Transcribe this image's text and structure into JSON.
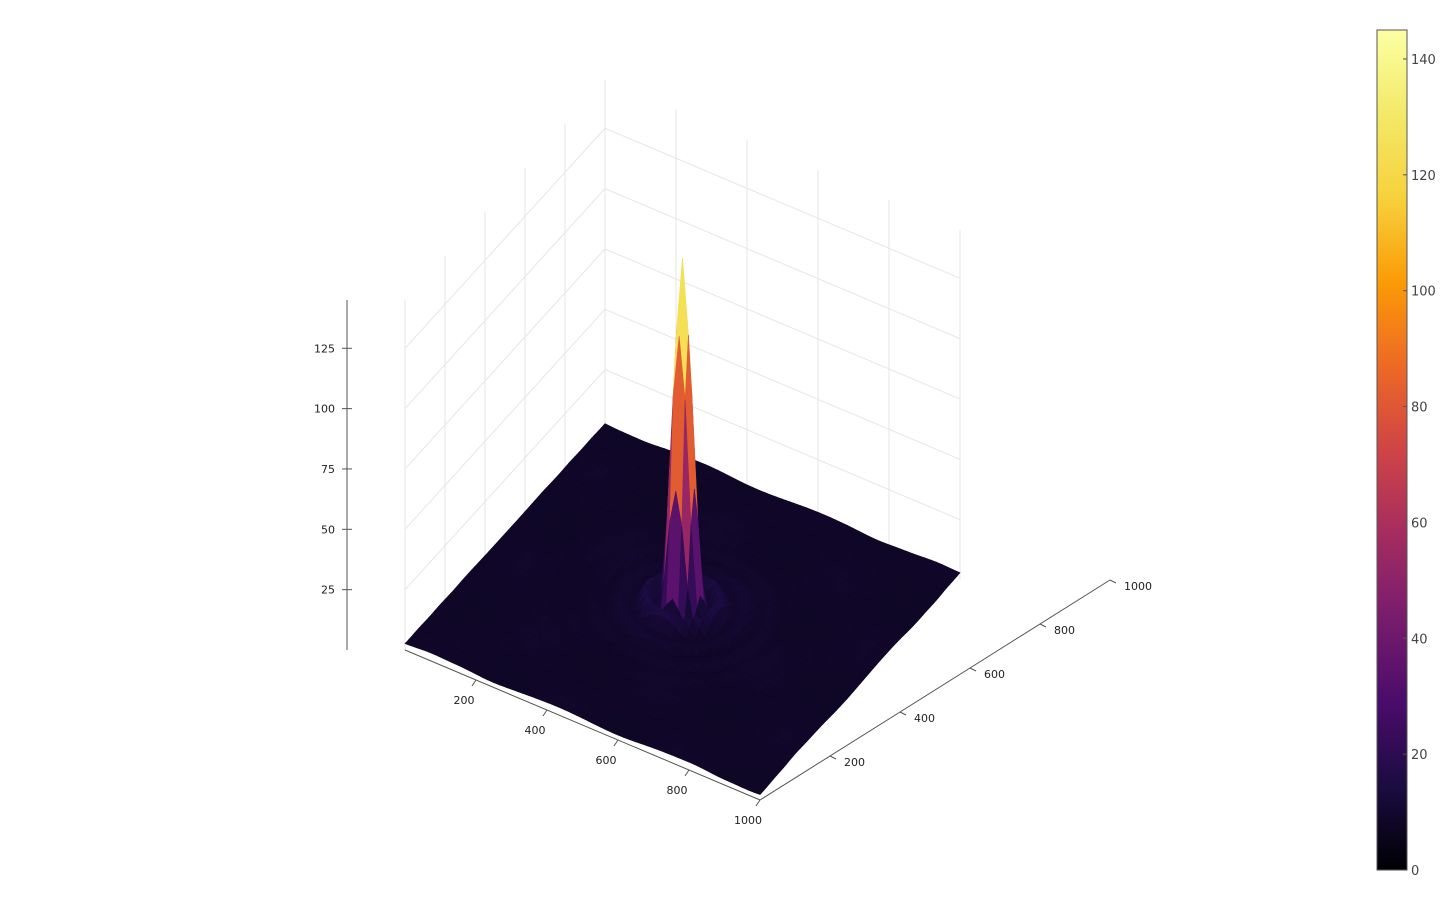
{
  "chart_data": {
    "type": "surface",
    "title": "",
    "xlabel": "",
    "ylabel": "",
    "zlabel": "",
    "x_range": [
      0,
      1000
    ],
    "y_range": [
      0,
      1000
    ],
    "z_range": [
      0,
      145
    ],
    "x_ticks": [
      "200",
      "400",
      "600",
      "800",
      "1000"
    ],
    "y_ticks": [
      "200",
      "400",
      "600",
      "800",
      "1000"
    ],
    "z_ticks": [
      "25",
      "50",
      "75",
      "100",
      "125"
    ],
    "x_tick_values": [
      200,
      400,
      600,
      800,
      1000
    ],
    "y_tick_values": [
      200,
      400,
      600,
      800,
      1000
    ],
    "z_tick_values": [
      25,
      50,
      75,
      100,
      125
    ],
    "surface": {
      "center": [
        500,
        500
      ],
      "peak_value": 145,
      "min_value": 0,
      "description_function": "radial sinc-like ripple"
    },
    "colorbar": {
      "colormap": "inferno",
      "range": [
        0,
        145
      ],
      "ticks": [
        "0",
        "20",
        "40",
        "60",
        "80",
        "100",
        "120",
        "140"
      ],
      "tick_values": [
        0,
        20,
        40,
        60,
        80,
        100,
        120,
        140
      ]
    },
    "grid": true,
    "legend": "none"
  }
}
